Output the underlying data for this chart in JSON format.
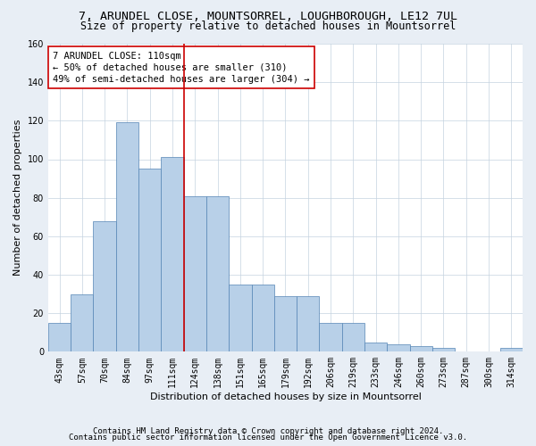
{
  "title": "7, ARUNDEL CLOSE, MOUNTSORREL, LOUGHBOROUGH, LE12 7UL",
  "subtitle": "Size of property relative to detached houses in Mountsorrel",
  "xlabel": "Distribution of detached houses by size in Mountsorrel",
  "ylabel": "Number of detached properties",
  "categories": [
    "43sqm",
    "57sqm",
    "70sqm",
    "84sqm",
    "97sqm",
    "111sqm",
    "124sqm",
    "138sqm",
    "151sqm",
    "165sqm",
    "179sqm",
    "192sqm",
    "206sqm",
    "219sqm",
    "233sqm",
    "246sqm",
    "260sqm",
    "273sqm",
    "287sqm",
    "300sqm",
    "314sqm"
  ],
  "values": [
    15,
    30,
    68,
    119,
    95,
    101,
    81,
    81,
    35,
    35,
    29,
    29,
    15,
    15,
    5,
    4,
    3,
    2,
    0,
    0,
    2
  ],
  "bar_color": "#b8d0e8",
  "bar_edge_color": "#5585b5",
  "vline_x": 5.5,
  "vline_color": "#cc0000",
  "annotation_line1": "7 ARUNDEL CLOSE: 110sqm",
  "annotation_line2": "← 50% of detached houses are smaller (310)",
  "annotation_line3": "49% of semi-detached houses are larger (304) →",
  "annotation_box_color": "#cc0000",
  "ylim": [
    0,
    160
  ],
  "yticks": [
    0,
    20,
    40,
    60,
    80,
    100,
    120,
    140,
    160
  ],
  "footnote1": "Contains HM Land Registry data © Crown copyright and database right 2024.",
  "footnote2": "Contains public sector information licensed under the Open Government Licence v3.0.",
  "title_fontsize": 9.5,
  "subtitle_fontsize": 8.5,
  "xlabel_fontsize": 8,
  "ylabel_fontsize": 8,
  "tick_fontsize": 7,
  "annotation_fontsize": 7.5,
  "footnote_fontsize": 6.5,
  "background_color": "#e8eef5",
  "plot_background_color": "#ffffff"
}
